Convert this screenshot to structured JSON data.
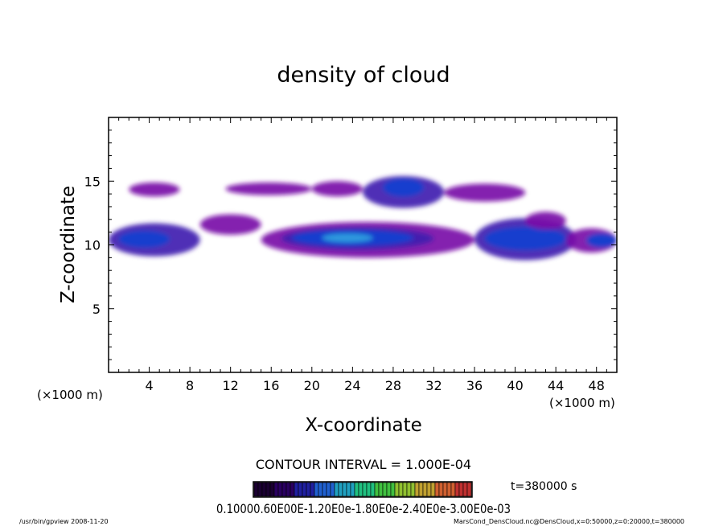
{
  "chart_data": {
    "type": "heatmap",
    "title": "density of cloud",
    "xlabel": "X-coordinate",
    "ylabel": "Z-coordinate",
    "x_unit": "(×1000 m)",
    "z_unit": "(×1000 m)",
    "xlim": [
      0,
      50
    ],
    "ylim": [
      0,
      20
    ],
    "x_ticks": [
      4,
      8,
      12,
      16,
      20,
      24,
      28,
      32,
      36,
      40,
      44,
      48
    ],
    "y_ticks": [
      5,
      10,
      15
    ],
    "contour_interval": "CONTOUR INTERVAL = 1.000E-04",
    "time_label": "t=380000 s",
    "colorbar_labels_text": "0.10000.60E00E-1.20E0e-1.80E0e-2.40E0e-3.00E0e-03",
    "colorbar_colors": [
      "#1a0030",
      "#2a0060",
      "#2020a0",
      "#2060d0",
      "#20a0c0",
      "#20c080",
      "#40c040",
      "#90c030",
      "#c0a030",
      "#d06030",
      "#c03030"
    ],
    "cloud_colors": {
      "low": "#7a10a8",
      "mid": "#4020b0",
      "high": "#1040d0",
      "peak": "#30a0e0"
    },
    "cloud_regions": [
      {
        "x": [
          2,
          7
        ],
        "z": [
          13.8,
          14.9
        ],
        "level": "low"
      },
      {
        "x": [
          11.5,
          20
        ],
        "z": [
          13.9,
          14.9
        ],
        "level": "low"
      },
      {
        "x": [
          20,
          25
        ],
        "z": [
          13.8,
          15.0
        ],
        "level": "low"
      },
      {
        "x": [
          25,
          33
        ],
        "z": [
          12.9,
          15.4
        ],
        "level": "mid"
      },
      {
        "x": [
          27,
          31
        ],
        "z": [
          13.8,
          15.2
        ],
        "level": "high"
      },
      {
        "x": [
          33,
          41
        ],
        "z": [
          13.4,
          14.8
        ],
        "level": "low"
      },
      {
        "x": [
          0,
          9
        ],
        "z": [
          9.1,
          11.7
        ],
        "level": "mid"
      },
      {
        "x": [
          1,
          6
        ],
        "z": [
          9.8,
          11.1
        ],
        "level": "high"
      },
      {
        "x": [
          9,
          15
        ],
        "z": [
          10.8,
          12.4
        ],
        "level": "low"
      },
      {
        "x": [
          15,
          36
        ],
        "z": [
          9.0,
          11.8
        ],
        "level": "low"
      },
      {
        "x": [
          17,
          32
        ],
        "z": [
          9.6,
          11.4
        ],
        "level": "mid"
      },
      {
        "x": [
          18,
          30
        ],
        "z": [
          9.9,
          11.2
        ],
        "level": "high"
      },
      {
        "x": [
          21,
          26
        ],
        "z": [
          10.2,
          10.9
        ],
        "level": "peak"
      },
      {
        "x": [
          36,
          46
        ],
        "z": [
          8.8,
          12.1
        ],
        "level": "mid"
      },
      {
        "x": [
          37,
          45
        ],
        "z": [
          9.6,
          11.4
        ],
        "level": "high"
      },
      {
        "x": [
          41,
          45
        ],
        "z": [
          11.2,
          12.6
        ],
        "level": "low"
      },
      {
        "x": [
          45,
          50
        ],
        "z": [
          9.4,
          11.3
        ],
        "level": "low"
      },
      {
        "x": [
          47,
          50
        ],
        "z": [
          9.8,
          10.9
        ],
        "level": "high"
      }
    ]
  },
  "footer": {
    "left": "/usr/bin/gpview  2008-11-20",
    "right": "MarsCond_DensCloud.nc@DensCloud,x=0:50000,z=0:20000,t=380000"
  }
}
